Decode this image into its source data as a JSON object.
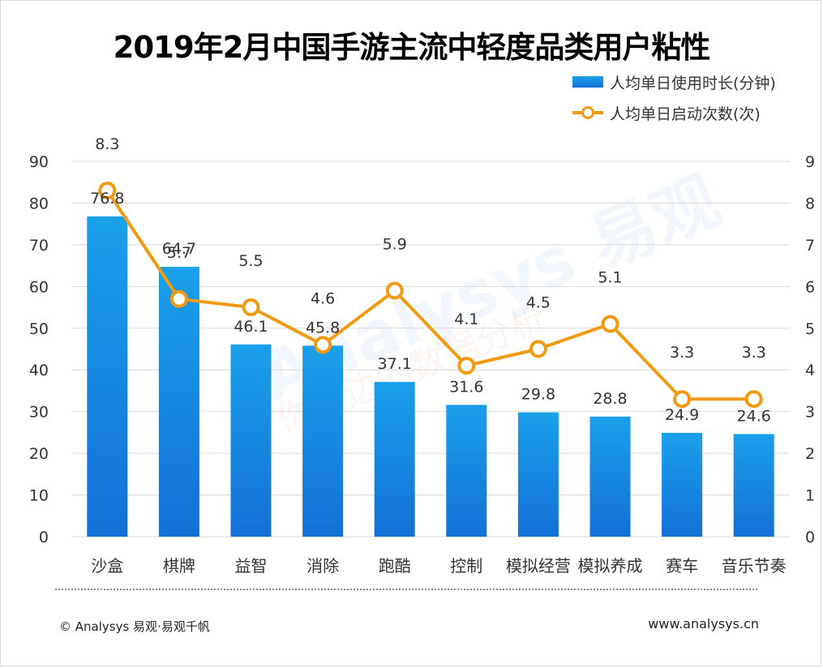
{
  "chart_data": {
    "type": "bar",
    "title": "2019年2月中国手游主流中轻度品类用户粘性",
    "categories": [
      "沙盒",
      "棋牌",
      "益智",
      "消除",
      "跑酷",
      "控制",
      "模拟经营",
      "模拟养成",
      "赛车",
      "音乐节奏"
    ],
    "series": [
      {
        "name": "人均单日使用时长(分钟)",
        "type": "bar",
        "axis": "left",
        "values": [
          76.8,
          64.7,
          46.1,
          45.8,
          37.1,
          31.6,
          29.8,
          28.8,
          24.9,
          24.6
        ],
        "labels": [
          "76.8",
          "64.7",
          "46.1",
          "45.8",
          "37.1",
          "31.6",
          "29.8",
          "28.8",
          "24.9",
          "24.6"
        ]
      },
      {
        "name": "人均单日启动次数(次)",
        "type": "line",
        "axis": "right",
        "values": [
          8.3,
          5.7,
          5.5,
          4.6,
          5.9,
          4.1,
          4.5,
          5.1,
          3.3,
          3.3
        ],
        "labels": [
          "8.3",
          "5.7",
          "5.5",
          "4.6",
          "5.9",
          "4.1",
          "4.5",
          "5.1",
          "3.3",
          "3.3"
        ]
      }
    ],
    "ylim_left": [
      0,
      90
    ],
    "ylim_right": [
      0,
      9
    ],
    "yticks_left": [
      "0",
      "10",
      "20",
      "30",
      "40",
      "50",
      "60",
      "70",
      "80",
      "90"
    ],
    "yticks_right": [
      "0",
      "1",
      "2",
      "3",
      "4",
      "5",
      "6",
      "7",
      "8",
      "9"
    ],
    "grid": true,
    "legend_position": "top-right",
    "colors": {
      "bar_top": "#1aa0ea",
      "bar_bottom": "#1470d6",
      "line": "#f29b12",
      "grid": "#d9d9d9"
    }
  },
  "watermark": {
    "brand": "Analysys 易观",
    "slogan": "你身边的数据分析"
  },
  "footer": {
    "left": "© Analysys 易观·易观千帆",
    "right": "www.analysys.cn"
  }
}
